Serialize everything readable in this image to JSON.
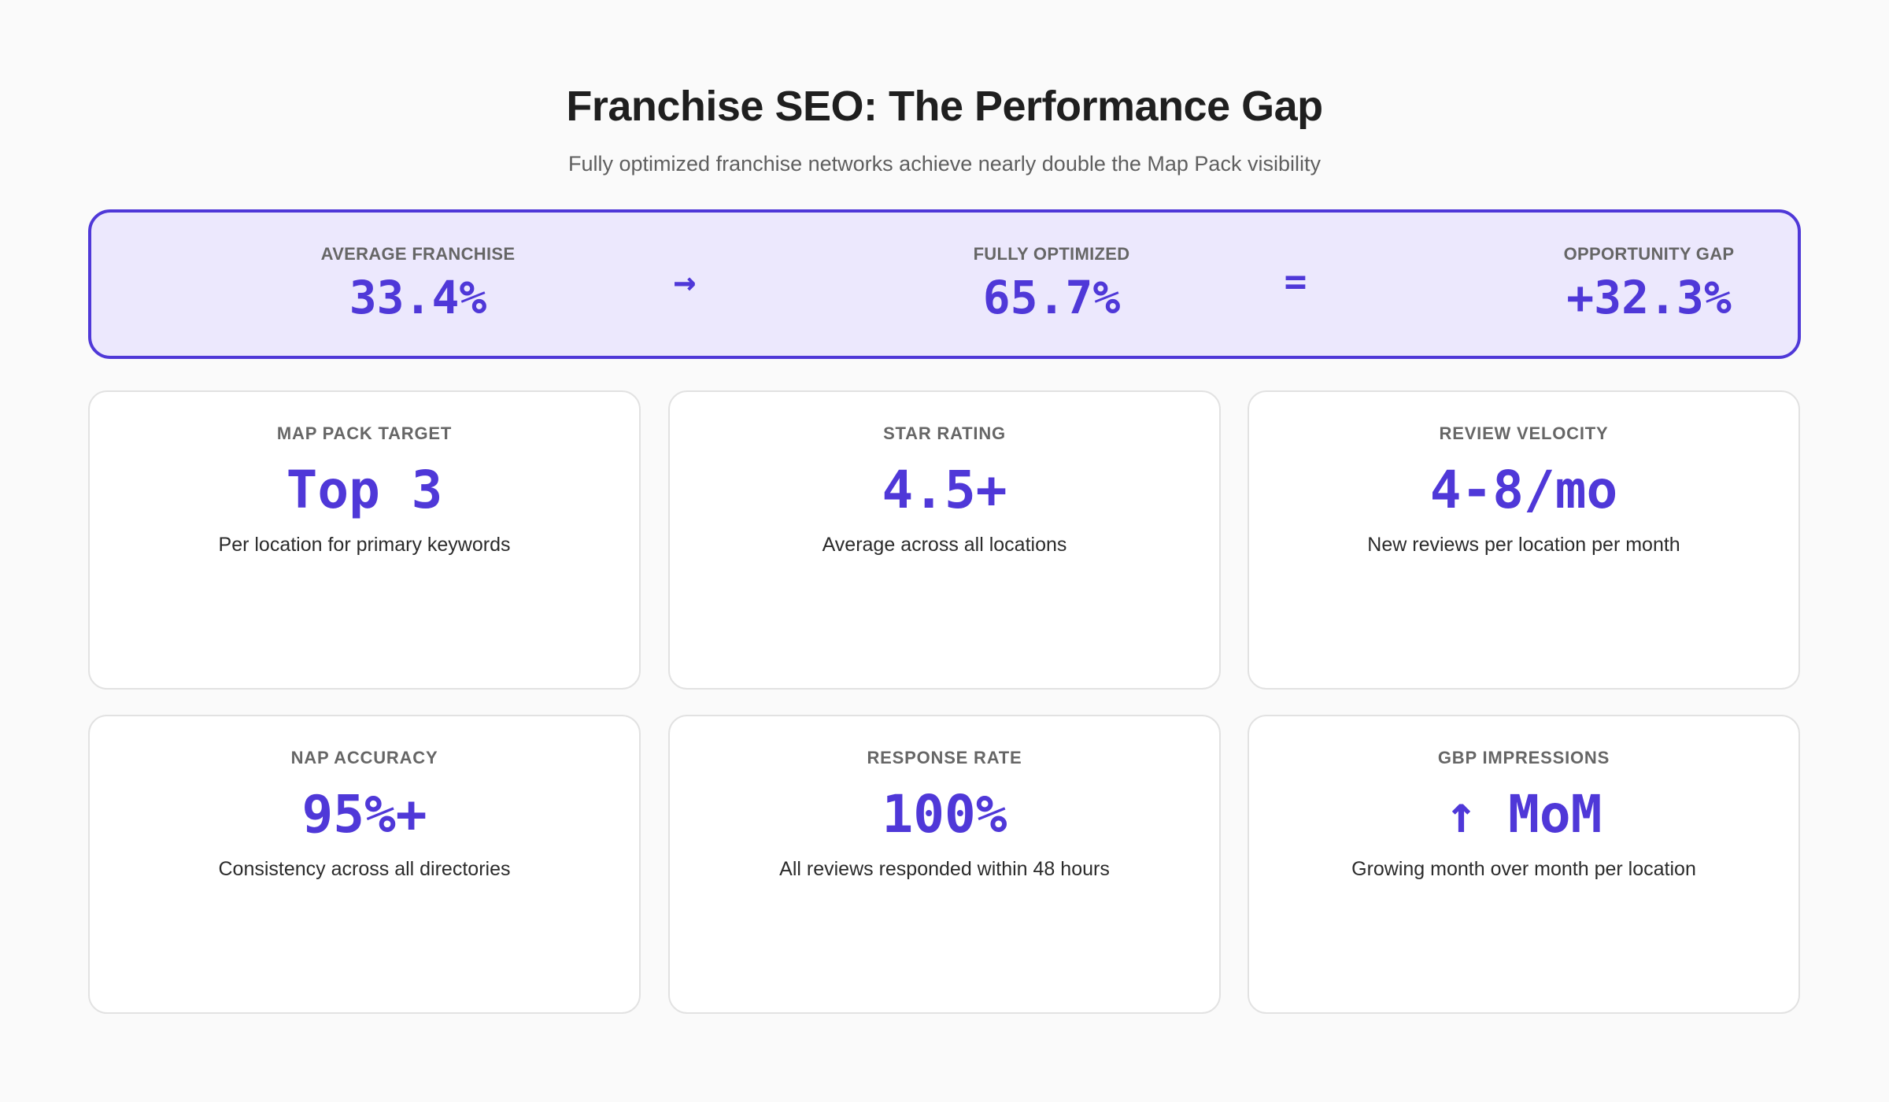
{
  "header": {
    "title": "Franchise SEO: The Performance Gap",
    "subtitle": "Fully optimized franchise networks achieve nearly double the Map Pack visibility"
  },
  "banner": {
    "average": {
      "label": "AVERAGE FRANCHISE",
      "value": "33.4%"
    },
    "arrow": "→",
    "optimized": {
      "label": "FULLY OPTIMIZED",
      "value": "65.7%"
    },
    "equals": "=",
    "gap": {
      "label": "OPPORTUNITY GAP",
      "value": "+32.3%"
    }
  },
  "cards": [
    {
      "label": "MAP PACK TARGET",
      "value": "Top 3",
      "desc": "Per location for primary keywords"
    },
    {
      "label": "STAR RATING",
      "value": "4.5+",
      "desc": "Average across all locations"
    },
    {
      "label": "REVIEW VELOCITY",
      "value": "4-8/mo",
      "desc": "New reviews per location per month"
    },
    {
      "label": "NAP ACCURACY",
      "value": "95%+",
      "desc": "Consistency across all directories"
    },
    {
      "label": "RESPONSE RATE",
      "value": "100%",
      "desc": "All reviews responded within 48 hours"
    },
    {
      "label": "GBP IMPRESSIONS",
      "value": "↑ MoM",
      "desc": "Growing month over month per location"
    }
  ],
  "colors": {
    "accent": "#4f38d8",
    "banner_bg": "#ece8fd",
    "page_bg": "#fafafa"
  }
}
